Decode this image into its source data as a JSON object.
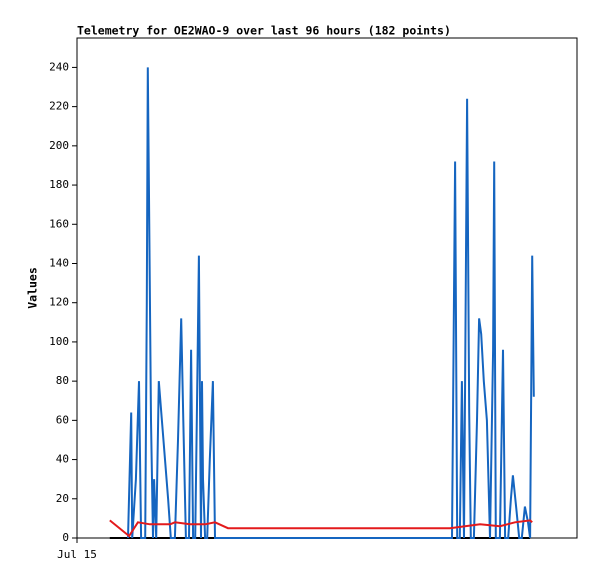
{
  "chart_data": {
    "type": "line",
    "title": "Telemetry for OE2WAO-9 over last 96 hours (182 points)",
    "y_label": "Values",
    "xlim": [
      0,
      96
    ],
    "xticks": [
      {
        "value": 0,
        "label": "Jul 15"
      }
    ],
    "ylim": [
      0,
      255
    ],
    "yticks": [
      0,
      20,
      40,
      60,
      80,
      100,
      120,
      140,
      160,
      180,
      200,
      220,
      240
    ],
    "series": [
      {
        "color": "#000000",
        "x": [
          6.3,
          87.0
        ],
        "values": [
          0,
          0
        ]
      },
      {
        "color": "#1565c0",
        "x": [
          9.8,
          10.4,
          10.6,
          11.3,
          11.9,
          12.3,
          13.1,
          13.4,
          13.6,
          13.8,
          14.2,
          14.6,
          14.8,
          15.2,
          15.7,
          16.3,
          16.9,
          17.5,
          18.0,
          18.8,
          19.4,
          20.0,
          20.4,
          20.9,
          21.5,
          21.9,
          22.3,
          22.7,
          23.0,
          23.4,
          23.8,
          24.0,
          24.2,
          24.6,
          25.0,
          25.5,
          26.1,
          26.5,
          72.0,
          72.6,
          73.0,
          73.5,
          73.9,
          74.3,
          74.9,
          75.3,
          75.6,
          76.2,
          76.8,
          77.2,
          77.6,
          78.1,
          78.7,
          79.3,
          79.9,
          80.1,
          80.4,
          81.2,
          81.8,
          82.2,
          82.8,
          83.3,
          83.7,
          84.3,
          84.9,
          85.4,
          86.0,
          86.6,
          87.0,
          87.4,
          87.7
        ],
        "values": [
          0,
          64,
          0,
          30,
          80,
          0,
          0,
          120,
          240,
          180,
          60,
          0,
          30,
          0,
          80,
          60,
          40,
          20,
          0,
          0,
          50,
          112,
          60,
          0,
          0,
          96,
          0,
          0,
          60,
          144,
          0,
          80,
          30,
          0,
          0,
          40,
          80,
          0,
          0,
          192,
          0,
          0,
          80,
          0,
          224,
          64,
          0,
          0,
          60,
          112,
          104,
          80,
          60,
          0,
          96,
          192,
          0,
          0,
          96,
          0,
          0,
          20,
          32,
          16,
          0,
          0,
          16,
          8,
          0,
          144,
          72
        ]
      },
      {
        "color": "#e31a1c",
        "x": [
          6.3,
          10.0,
          11.7,
          14.0,
          17.9,
          18.8,
          21.7,
          24.6,
          26.5,
          29.0,
          30.3,
          71.6,
          77.4,
          81.2,
          84.1,
          87.0,
          87.4
        ],
        "values": [
          9,
          1,
          8,
          7,
          7,
          8,
          7,
          7,
          8,
          5,
          5,
          5,
          7,
          6,
          8,
          9,
          8
        ]
      }
    ]
  }
}
